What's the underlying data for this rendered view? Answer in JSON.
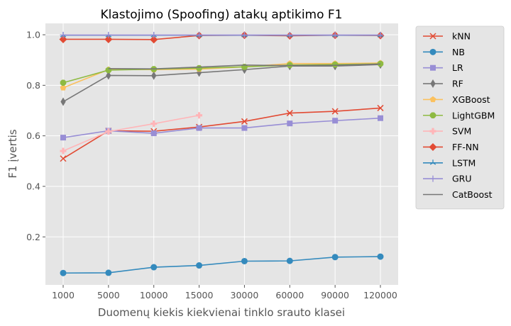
{
  "chart_data": {
    "type": "line",
    "title": "Klastojimo (Spoofing) atakų aptikimo F1",
    "xlabel": "Duomenų kiekis kiekvienai tinklo srauto klasei",
    "ylabel": "F1 įvertis",
    "categories": [
      "1000",
      "5000",
      "10000",
      "15000",
      "30000",
      "60000",
      "90000",
      "120000"
    ],
    "ylim": [
      0.01,
      1.045
    ],
    "yticks": [
      0.2,
      0.4,
      0.6,
      0.8,
      1.0
    ],
    "ytick_labels": [
      "0.2",
      "0.4",
      "0.6",
      "0.8",
      "1.0"
    ],
    "grid": true,
    "legend_position": "outside-right",
    "series": [
      {
        "name": "kNN",
        "color": "#E24A33",
        "marker": "x",
        "values": [
          0.51,
          0.62,
          0.618,
          0.635,
          0.657,
          0.69,
          0.697,
          0.71
        ]
      },
      {
        "name": "NB",
        "color": "#348ABD",
        "marker": "circle",
        "values": [
          0.057,
          0.058,
          0.08,
          0.087,
          0.104,
          0.105,
          0.12,
          0.122
        ]
      },
      {
        "name": "LR",
        "color": "#988ED5",
        "marker": "square",
        "values": [
          0.593,
          0.62,
          0.61,
          0.631,
          0.631,
          0.649,
          0.66,
          0.67
        ]
      },
      {
        "name": "RF",
        "color": "#777777",
        "marker": "thin-diamond",
        "values": [
          0.735,
          0.839,
          0.838,
          0.85,
          0.862,
          0.876,
          0.876,
          0.882
        ]
      },
      {
        "name": "XGBoost",
        "color": "#FBC15E",
        "marker": "pentagon",
        "values": [
          0.79,
          0.862,
          0.862,
          0.864,
          0.873,
          0.886,
          0.886,
          0.888
        ]
      },
      {
        "name": "LightGBM",
        "color": "#8EBA42",
        "marker": "octagon",
        "values": [
          0.81,
          0.86,
          0.864,
          0.868,
          0.873,
          0.88,
          0.882,
          0.885
        ]
      },
      {
        "name": "SVM",
        "color": "#FFB5B8",
        "marker": "plus-filled",
        "values": [
          0.54,
          0.617,
          0.648,
          0.681,
          null,
          null,
          null,
          null
        ]
      },
      {
        "name": "FF-NN",
        "color": "#E24A33",
        "marker": "diamond",
        "values": [
          0.982,
          0.982,
          0.981,
          0.997,
          0.998,
          0.996,
          0.998,
          0.997
        ]
      },
      {
        "name": "LSTM",
        "color": "#348ABD",
        "marker": "tri",
        "values": [
          0.998,
          0.998,
          0.998,
          0.998,
          0.998,
          0.998,
          0.998,
          0.998
        ]
      },
      {
        "name": "GRU",
        "color": "#988ED5",
        "marker": "thin-plus",
        "values": [
          0.999,
          0.999,
          0.999,
          0.999,
          0.999,
          0.999,
          0.999,
          0.999
        ]
      },
      {
        "name": "CatBoost",
        "color": "#777777",
        "marker": "none",
        "values": [
          null,
          0.866,
          0.865,
          0.872,
          0.88,
          0.878,
          0.879,
          0.884
        ]
      }
    ]
  }
}
